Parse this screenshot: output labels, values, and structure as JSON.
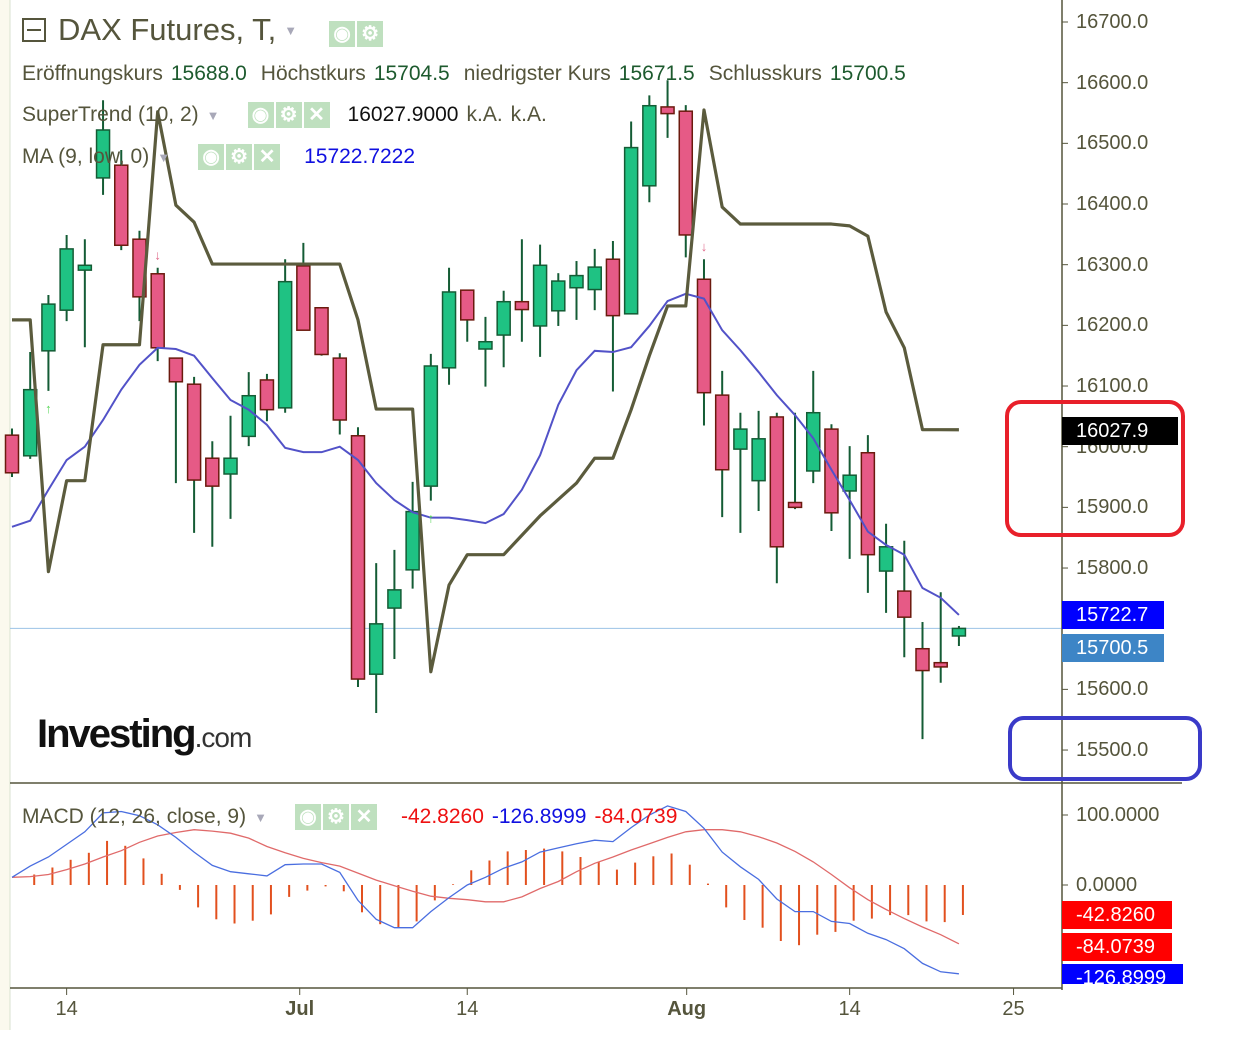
{
  "header": {
    "title": "DAX Futures, T,",
    "ohlc": [
      {
        "label": "Eröffnungskurs",
        "value": "15688.0"
      },
      {
        "label": "Höchstkurs",
        "value": "15704.5"
      },
      {
        "label": "niedrigster Kurs",
        "value": "15671.5"
      },
      {
        "label": "Schlusskurs",
        "value": "15700.5"
      }
    ]
  },
  "indicators": {
    "supertrend": {
      "label": "SuperTrend (10, 2)",
      "value": "16027.9000",
      "extra1": "k.A.",
      "extra2": "k.A."
    },
    "ma": {
      "label": "MA (9, low, 0)",
      "value": "15722.7222"
    },
    "macd": {
      "label": "MACD (12, 26, close, 9)",
      "hist": "-42.8260",
      "macd": "-126.8999",
      "signal": "-84.0739"
    }
  },
  "icons": [
    "collapse-icon",
    "dropdown-caret-icon",
    "eye-icon",
    "gear-icon",
    "close-icon",
    "arrow-up-icon",
    "arrow-down-icon"
  ],
  "logo": {
    "brand": "Investing",
    "suffix": ".com"
  },
  "price_axis": {
    "ticks": [
      "16700.0",
      "16600.0",
      "16500.0",
      "16400.0",
      "16300.0",
      "16200.0",
      "16100.0",
      "16000.0",
      "15900.0",
      "15800.0",
      "15600.0",
      "15500.0"
    ],
    "badges": {
      "supertrend": "16027.9",
      "ma": "15722.7",
      "last": "15700.5"
    }
  },
  "macd_axis": {
    "ticks": [
      "100.0000",
      "0.0000"
    ],
    "badges": {
      "hist": "-42.8260",
      "signal": "-84.0739",
      "macd": "-126.8999"
    }
  },
  "time_axis": {
    "labels": [
      "14",
      "Jul",
      "14",
      "Aug",
      "14",
      "25"
    ]
  },
  "colors": {
    "up": "#1fc283",
    "up_border": "#145c35",
    "down": "#e65a86",
    "down_border": "#6b1a0e",
    "supertrend": "#5b5b3d",
    "ma": "#5252c8",
    "macd_line": "#4a6ee0",
    "signal_line": "#e06a6a",
    "histogram": "#e2501e",
    "last_price_line": "#9cc3e6",
    "badge_supertrend": "#000000",
    "badge_ma": "#0000ff",
    "badge_last": "#3d85c6",
    "badge_red": "#ff0000",
    "badge_blue": "#0000ff",
    "annotation_red": "#e8202a",
    "annotation_blue": "#3a3ac8"
  },
  "chart_data": {
    "type": "candlestick",
    "title": "DAX Futures, T,",
    "ylim": [
      15445,
      16735
    ],
    "macd_ylim": [
      -143,
      135
    ],
    "grid": false,
    "candles": [
      [
        16019,
        16030,
        15950,
        15957
      ],
      [
        15985,
        16156,
        15980,
        16094
      ],
      [
        16158,
        16250,
        16092,
        16235
      ],
      [
        16225,
        16349,
        16207,
        16326
      ],
      [
        16291,
        16342,
        16164,
        16299
      ],
      [
        16443,
        16571,
        16415,
        16522
      ],
      [
        16464,
        16489,
        16324,
        16332
      ],
      [
        16342,
        16356,
        16207,
        16247
      ],
      [
        16285,
        16295,
        16141,
        16163
      ],
      [
        16146,
        16146,
        15940,
        16107
      ],
      [
        16103,
        16115,
        15858,
        15945
      ],
      [
        15981,
        16009,
        15835,
        15935
      ],
      [
        15955,
        16051,
        15881,
        15981
      ],
      [
        16017,
        16123,
        16001,
        16084
      ],
      [
        16110,
        16120,
        16042,
        16061
      ],
      [
        16064,
        16309,
        16056,
        16272
      ],
      [
        16298,
        16336,
        16192,
        16192
      ],
      [
        16229,
        16229,
        16150,
        16152
      ],
      [
        16146,
        16154,
        16020,
        16044
      ],
      [
        16018,
        16032,
        15604,
        15617
      ],
      [
        15625,
        15808,
        15561,
        15708
      ],
      [
        15734,
        15830,
        15650,
        15764
      ],
      [
        15797,
        15942,
        15766,
        15893
      ],
      [
        15935,
        16153,
        15911,
        16133
      ],
      [
        16130,
        16295,
        16102,
        16255
      ],
      [
        16258,
        16258,
        16173,
        16209
      ],
      [
        16161,
        16214,
        16099,
        16173
      ],
      [
        16184,
        16257,
        16131,
        16239
      ],
      [
        16239,
        16342,
        16173,
        16226
      ],
      [
        16199,
        16333,
        16148,
        16299
      ],
      [
        16224,
        16286,
        16199,
        16273
      ],
      [
        16262,
        16306,
        16209,
        16282
      ],
      [
        16259,
        16326,
        16225,
        16296
      ],
      [
        16309,
        16339,
        16091,
        16216
      ],
      [
        16219,
        16536,
        16219,
        16493
      ],
      [
        16430,
        16579,
        16403,
        16562
      ],
      [
        16560,
        16604,
        16509,
        16549
      ],
      [
        16553,
        16563,
        16312,
        16349
      ],
      [
        16276,
        16309,
        16035,
        16089
      ],
      [
        16085,
        16125,
        15884,
        15962
      ],
      [
        15996,
        16056,
        15858,
        16029
      ],
      [
        15944,
        16059,
        15894,
        16013
      ],
      [
        16049,
        16056,
        15775,
        15835
      ],
      [
        15908,
        16056,
        15897,
        15900
      ],
      [
        15960,
        16125,
        15940,
        16056
      ],
      [
        16029,
        16037,
        15861,
        15891
      ],
      [
        15927,
        16001,
        15815,
        15953
      ],
      [
        15990,
        16019,
        15759,
        15822
      ],
      [
        15795,
        15873,
        15726,
        15835
      ],
      [
        15762,
        15845,
        15653,
        15719
      ],
      [
        15667,
        15711,
        15518,
        15631
      ],
      [
        15644,
        15760,
        15611,
        15637
      ],
      [
        15688,
        15704.5,
        15671.5,
        15700.5
      ]
    ],
    "supertrend": [
      16209,
      16209,
      15794,
      15944,
      15944,
      16168,
      16168,
      16168,
      16552,
      16398,
      16370,
      16301,
      16301,
      16301,
      16301,
      16301,
      16301,
      16301,
      16301,
      16209,
      16062,
      16062,
      16062,
      15629,
      15772,
      15822,
      15822,
      15822,
      15854,
      15886,
      15913,
      15940,
      15981,
      15981,
      16061,
      16150,
      16232,
      16232,
      16555,
      16395,
      16367,
      16367,
      16367,
      16367,
      16367,
      16367,
      16364,
      16347,
      16222,
      16163,
      16028,
      16028,
      16027.9
    ],
    "supertrend_signals": [
      {
        "index": 2,
        "dir": "up"
      },
      {
        "index": 8,
        "dir": "down"
      },
      {
        "index": 23,
        "dir": "up"
      },
      {
        "index": 38,
        "dir": "down"
      }
    ],
    "ma": [
      15868,
      15878,
      15929,
      15978,
      16000,
      16044,
      16094,
      16135,
      16163,
      16161,
      16150,
      16113,
      16077,
      16061,
      16036,
      15998,
      15991,
      15991,
      16000,
      15978,
      15940,
      15912,
      15892,
      15883,
      15883,
      15879,
      15874,
      15889,
      15929,
      15986,
      16069,
      16126,
      16158,
      16156,
      16164,
      16199,
      16240,
      16252,
      16244,
      16192,
      16159,
      16123,
      16085,
      16052,
      16014,
      15962,
      15912,
      15860,
      15838,
      15822,
      15767,
      15751,
      15722.7
    ],
    "macd": [
      11,
      27,
      40,
      58,
      76,
      103,
      105,
      99,
      86,
      68,
      47,
      28,
      19,
      16,
      13,
      29,
      30,
      30,
      18,
      -22,
      -49,
      -61,
      -61,
      -38,
      -18,
      0,
      11,
      24,
      33,
      47,
      53,
      59,
      64,
      62,
      82,
      100,
      113,
      105,
      81,
      47,
      26,
      8,
      -20,
      -38,
      -38,
      -52,
      -55,
      -69,
      -78,
      -91,
      -112,
      -124,
      -126.8999
    ],
    "signal": [
      11,
      12,
      15,
      22,
      30,
      40,
      49,
      61,
      70,
      75,
      79,
      77,
      74,
      67,
      55,
      46,
      38,
      32,
      27,
      17,
      7,
      -1,
      -9,
      -16,
      -19,
      -21,
      -24,
      -24,
      -17,
      -5,
      5,
      19,
      31,
      40,
      50,
      59,
      68,
      76,
      79,
      79,
      76,
      69,
      60,
      48,
      33,
      15,
      -4,
      -21,
      -35,
      -48,
      -60,
      -71,
      -84.0739
    ],
    "last_price": 15700.5
  }
}
